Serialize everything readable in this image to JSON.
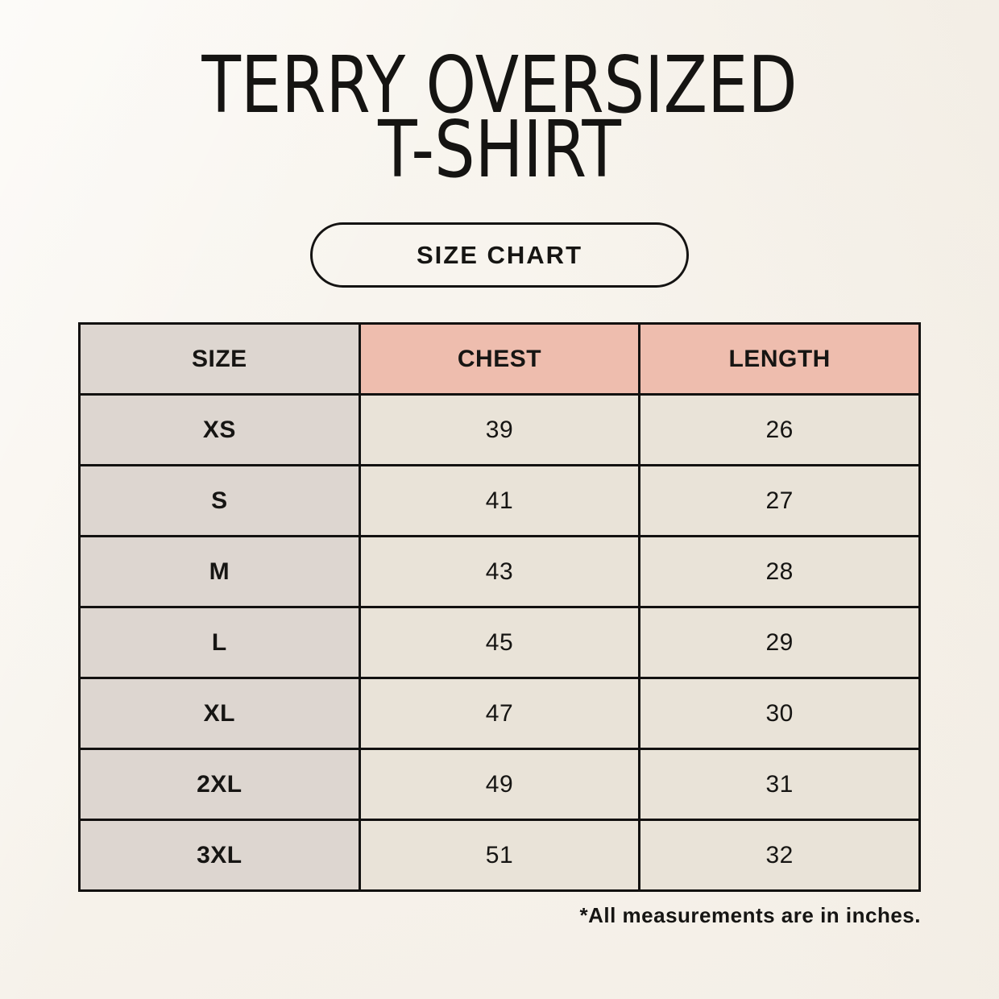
{
  "header": {
    "title_line1": "TERRY OVERSIZED",
    "title_line2": "T-SHIRT",
    "badge_label": "SIZE CHART"
  },
  "chart_data": {
    "type": "table",
    "title": "TERRY OVERSIZED T-SHIRT",
    "columns": [
      "SIZE",
      "CHEST",
      "LENGTH"
    ],
    "rows": [
      [
        "XS",
        "39",
        "26"
      ],
      [
        "S",
        "41",
        "27"
      ],
      [
        "M",
        "43",
        "28"
      ],
      [
        "L",
        "45",
        "29"
      ],
      [
        "XL",
        "47",
        "30"
      ],
      [
        "2XL",
        "49",
        "31"
      ],
      [
        "3XL",
        "51",
        "32"
      ]
    ],
    "units": "inches",
    "footnote": "*All measurements are in inches."
  },
  "colors": {
    "background": "#f7f3ec",
    "size_column_bg": "#ddd6d0",
    "accent_header_bg": "#eebdae",
    "value_cell_bg": "#e9e3d8",
    "border": "#121110",
    "text": "#161513"
  }
}
